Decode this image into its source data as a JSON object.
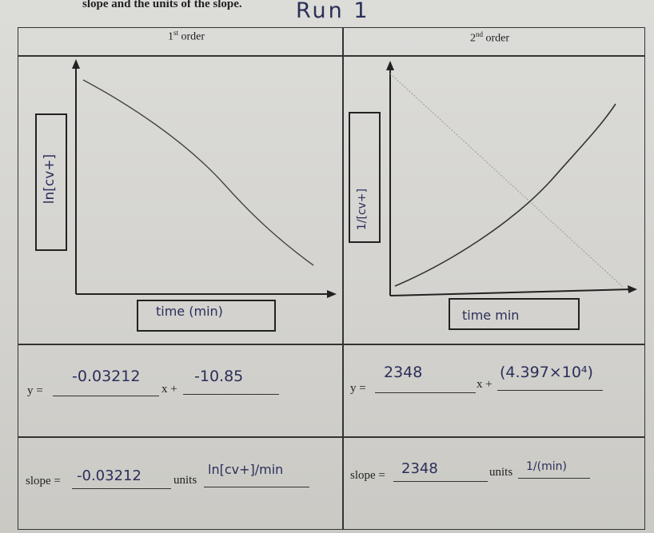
{
  "header": {
    "instruction": "slope and the units of the slope.",
    "annotation": "Run 1"
  },
  "first_order": {
    "heading_num": "1",
    "heading_sup": "st",
    "heading_rest": " order",
    "y_axis_label": "ln[cv+]",
    "x_axis_label": "time (min)",
    "eq_y": "y =",
    "eq_x": "x +",
    "slope_value": "-0.03212",
    "intercept_value": "-10.85",
    "slope_label": "slope =",
    "slope_hand": "-0.03212",
    "units_label": "units",
    "units_hand": "ln[cv+]/min"
  },
  "second_order": {
    "heading_num": "2",
    "heading_sup": "nd",
    "heading_rest": " order",
    "y_axis_label": "1/[cv+]",
    "x_axis_label": "time min",
    "eq_y": "y =",
    "eq_x": "x +",
    "slope_value": "2348",
    "intercept_value": "(4.397×10⁴)",
    "slope_label": "slope =",
    "slope_hand": "2348",
    "units_label": "units",
    "units_hand": "1/(min)"
  },
  "colors": {
    "ink": "#2b2e5a",
    "pencil": "#555555",
    "print": "#222222"
  }
}
